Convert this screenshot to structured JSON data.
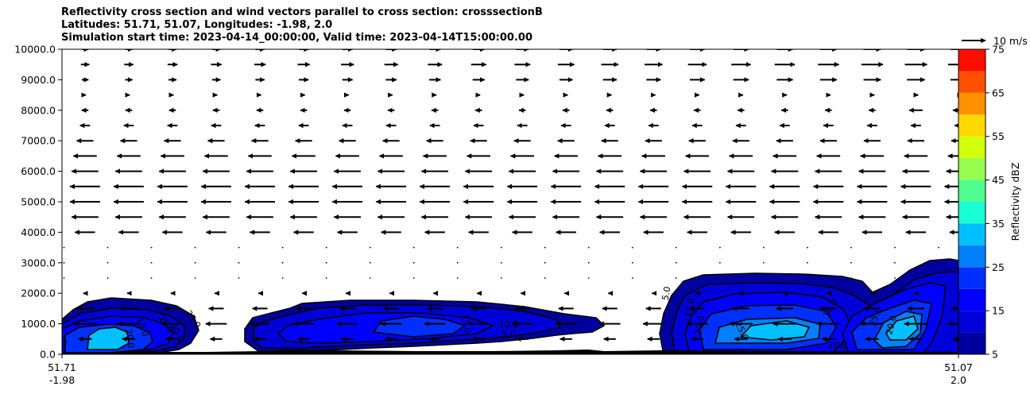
{
  "title_lines": [
    "Reflectivity cross section and wind vectors parallel to cross section: crosssectionB",
    "Latitudes: 51.71, 51.07, Longitudes: -1.98, 2.0",
    "Simulation start time: 2023-04-14_00:00:00, Valid time: 2023-04-14T15:00:00.00"
  ],
  "chart_data": {
    "type": "heatmap",
    "subtype": "filled-contour cross section with wind vectors",
    "y_axis": {
      "range": [
        0,
        10000
      ],
      "ticks": [
        0,
        1000,
        2000,
        3000,
        4000,
        5000,
        6000,
        7000,
        8000,
        9000,
        10000
      ],
      "tick_labels": [
        "0.0",
        "1000.0",
        "2000.0",
        "3000.0",
        "4000.0",
        "5000.0",
        "6000.0",
        "7000.0",
        "8000.0",
        "9000.0",
        "10000.0"
      ]
    },
    "x_axis": {
      "range": [
        0,
        1
      ],
      "ticks": [
        {
          "pos": 0,
          "lat": "51.71",
          "lon": "-1.98"
        },
        {
          "pos": 1,
          "lat": "51.07",
          "lon": "2.0"
        }
      ]
    },
    "colorbar": {
      "label": "Reflectivity dBZ",
      "levels": [
        5,
        10,
        15,
        20,
        25,
        30,
        35,
        40,
        45,
        50,
        55,
        60,
        65,
        70,
        75
      ],
      "tick_labels": [
        "5",
        "15",
        "25",
        "35",
        "45",
        "55",
        "65",
        "75"
      ],
      "colors": [
        "#0000a0",
        "#0000d8",
        "#0000ff",
        "#0030ff",
        "#0080ff",
        "#00c0ff",
        "#19ffd4",
        "#50ff90",
        "#98ff50",
        "#d2ff0c",
        "#ffd800",
        "#ff9000",
        "#ff5000",
        "#ff0d00",
        "#a60000"
      ]
    },
    "quiver_key": {
      "label": "10 m/s",
      "speed": 10
    },
    "contour_labels": [
      "5.0",
      "15.0",
      "20.0",
      "25.0",
      "25.0",
      "20.0",
      "15.0",
      "10.0",
      "5.0",
      "5.0",
      "15.0",
      "20.0",
      "25.0",
      "10.0",
      "20.0",
      "25.0",
      "20.0"
    ],
    "cells": [
      {
        "x_range": [
          0.0,
          0.155
        ],
        "top_m": 1800,
        "max_dbz": 28
      },
      {
        "x_range": [
          0.21,
          0.62
        ],
        "top_m": 1700,
        "max_dbz": 22
      },
      {
        "x_range": [
          0.69,
          0.9
        ],
        "top_m": 2700,
        "max_dbz": 28
      },
      {
        "x_range": [
          0.9,
          1.0
        ],
        "top_m": 3100,
        "max_dbz": 28
      }
    ],
    "wind_vectors": {
      "levels_m": [
        500,
        1000,
        1500,
        2000,
        2500,
        3000,
        3500,
        4000,
        4500,
        5000,
        5500,
        6000,
        6500,
        7000,
        7500,
        8000,
        8500,
        9000,
        9500,
        10000
      ],
      "u_ms": [
        -4,
        -7,
        -5,
        -1,
        0,
        0,
        0,
        -6,
        -8,
        -9,
        -9,
        -8,
        -7,
        -5,
        -3,
        -2,
        1,
        4,
        5,
        4
      ]
    }
  }
}
